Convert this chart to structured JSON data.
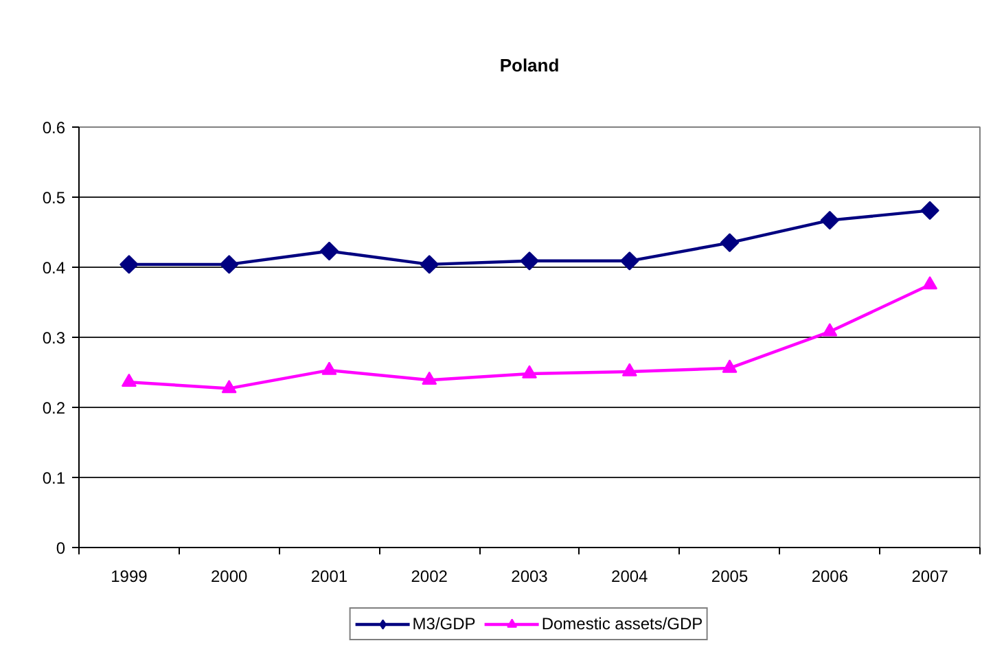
{
  "chart_data": {
    "type": "line",
    "title": "Poland",
    "categories": [
      "1999",
      "2000",
      "2001",
      "2002",
      "2003",
      "2004",
      "2005",
      "2006",
      "2007"
    ],
    "series": [
      {
        "name": "M3/GDP",
        "color": "#000080",
        "marker": "diamond",
        "values": [
          0.404,
          0.404,
          0.423,
          0.404,
          0.409,
          0.409,
          0.435,
          0.467,
          0.481
        ]
      },
      {
        "name": "Domestic assets/GDP",
        "color": "#ff00ff",
        "marker": "triangle",
        "values": [
          0.236,
          0.227,
          0.253,
          0.239,
          0.248,
          0.251,
          0.256,
          0.308,
          0.375
        ]
      }
    ],
    "ylim": [
      0,
      0.6
    ],
    "yticks": [
      0,
      0.1,
      0.2,
      0.3,
      0.4,
      0.5,
      0.6
    ],
    "grid": "y",
    "legend": "bottom",
    "line_style": "solid"
  }
}
